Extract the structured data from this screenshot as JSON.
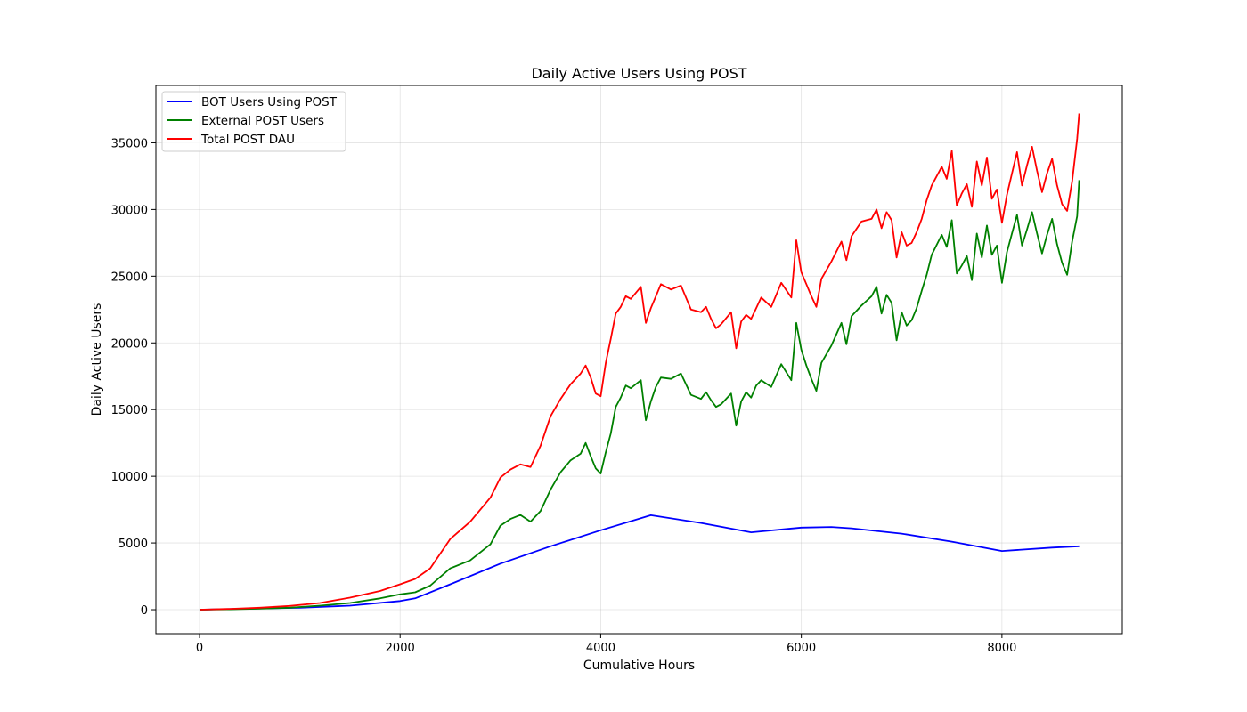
{
  "chart_data": {
    "type": "line",
    "title": "Daily Active Users Using POST",
    "xlabel": "Cumulative Hours",
    "ylabel": "Daily Active Users",
    "xlim": [
      -435,
      9200
    ],
    "ylim": [
      -1800,
      39300
    ],
    "xticks": [
      0,
      2000,
      4000,
      6000,
      8000
    ],
    "yticks": [
      0,
      5000,
      10000,
      15000,
      20000,
      25000,
      30000,
      35000
    ],
    "grid": true,
    "legend_position": "upper-left",
    "series": [
      {
        "name": "BOT Users Using POST",
        "color": "#0000ff",
        "x": [
          0,
          500,
          1000,
          1500,
          2000,
          2150,
          2500,
          3000,
          3500,
          4000,
          4500,
          5000,
          5500,
          6000,
          6300,
          6500,
          7000,
          7500,
          8000,
          8500,
          8770
        ],
        "y": [
          0,
          80,
          150,
          300,
          650,
          850,
          1900,
          3450,
          4750,
          5950,
          7080,
          6500,
          5800,
          6150,
          6200,
          6100,
          5700,
          5100,
          4400,
          4650,
          4750
        ]
      },
      {
        "name": "External POST Users",
        "color": "#008000",
        "x": [
          0,
          300,
          600,
          900,
          1200,
          1500,
          1800,
          2000,
          2150,
          2300,
          2500,
          2700,
          2900,
          3000,
          3100,
          3200,
          3300,
          3400,
          3500,
          3600,
          3700,
          3800,
          3850,
          3900,
          3950,
          4000,
          4050,
          4100,
          4150,
          4200,
          4250,
          4300,
          4400,
          4450,
          4500,
          4550,
          4600,
          4700,
          4800,
          4900,
          5000,
          5050,
          5100,
          5150,
          5200,
          5300,
          5350,
          5400,
          5450,
          5500,
          5550,
          5600,
          5700,
          5800,
          5900,
          5950,
          6000,
          6050,
          6100,
          6150,
          6200,
          6300,
          6400,
          6450,
          6500,
          6600,
          6700,
          6750,
          6800,
          6850,
          6900,
          6950,
          7000,
          7050,
          7100,
          7150,
          7200,
          7250,
          7300,
          7400,
          7450,
          7500,
          7550,
          7600,
          7650,
          7700,
          7750,
          7800,
          7850,
          7900,
          7950,
          8000,
          8050,
          8100,
          8150,
          8200,
          8250,
          8300,
          8350,
          8400,
          8450,
          8500,
          8550,
          8600,
          8650,
          8700,
          8750,
          8770
        ],
        "y": [
          0,
          30,
          80,
          150,
          300,
          500,
          850,
          1150,
          1300,
          1800,
          3100,
          3700,
          4900,
          6300,
          6800,
          7100,
          6600,
          7400,
          9000,
          10300,
          11200,
          11700,
          12500,
          11500,
          10600,
          10200,
          11800,
          13200,
          15200,
          15900,
          16800,
          16600,
          17200,
          14200,
          15600,
          16700,
          17400,
          17300,
          17700,
          16100,
          15800,
          16300,
          15700,
          15200,
          15400,
          16200,
          13800,
          15600,
          16300,
          15900,
          16800,
          17200,
          16700,
          18400,
          17200,
          21500,
          19500,
          18300,
          17300,
          16400,
          18500,
          19800,
          21500,
          19900,
          22000,
          22800,
          23500,
          24200,
          22200,
          23600,
          23000,
          20200,
          22300,
          21300,
          21700,
          22600,
          23900,
          25100,
          26600,
          28100,
          27200,
          29200,
          25200,
          25800,
          26500,
          24700,
          28200,
          26400,
          28800,
          26600,
          27300,
          24500,
          26800,
          28200,
          29600,
          27300,
          28500,
          29800,
          28200,
          26700,
          28100,
          29300,
          27400,
          26000,
          25100,
          27600,
          29500,
          32200
        ]
      },
      {
        "name": "Total POST DAU",
        "color": "#ff0000",
        "x": [
          0,
          300,
          600,
          900,
          1200,
          1500,
          1800,
          2000,
          2150,
          2300,
          2500,
          2700,
          2900,
          3000,
          3100,
          3200,
          3300,
          3400,
          3500,
          3600,
          3700,
          3800,
          3850,
          3900,
          3950,
          4000,
          4050,
          4100,
          4150,
          4200,
          4250,
          4300,
          4400,
          4450,
          4500,
          4550,
          4600,
          4700,
          4800,
          4900,
          5000,
          5050,
          5100,
          5150,
          5200,
          5300,
          5350,
          5400,
          5450,
          5500,
          5550,
          5600,
          5700,
          5800,
          5900,
          5950,
          6000,
          6050,
          6100,
          6150,
          6200,
          6300,
          6400,
          6450,
          6500,
          6600,
          6700,
          6750,
          6800,
          6850,
          6900,
          6950,
          7000,
          7050,
          7100,
          7150,
          7200,
          7250,
          7300,
          7400,
          7450,
          7500,
          7550,
          7600,
          7650,
          7700,
          7750,
          7800,
          7850,
          7900,
          7950,
          8000,
          8050,
          8100,
          8150,
          8200,
          8250,
          8300,
          8350,
          8400,
          8450,
          8500,
          8550,
          8600,
          8650,
          8700,
          8750,
          8770
        ],
        "y": [
          0,
          60,
          150,
          280,
          500,
          900,
          1400,
          1900,
          2300,
          3100,
          5300,
          6600,
          8400,
          9900,
          10500,
          10900,
          10700,
          12300,
          14500,
          15800,
          16900,
          17700,
          18300,
          17400,
          16200,
          16000,
          18500,
          20300,
          22200,
          22700,
          23500,
          23300,
          24200,
          21500,
          22600,
          23500,
          24400,
          24000,
          24300,
          22500,
          22300,
          22700,
          21800,
          21100,
          21400,
          22300,
          19600,
          21600,
          22100,
          21800,
          22600,
          23400,
          22700,
          24500,
          23400,
          27700,
          25300,
          24400,
          23500,
          22700,
          24800,
          26100,
          27600,
          26200,
          28000,
          29100,
          29300,
          30000,
          28600,
          29800,
          29200,
          26400,
          28300,
          27300,
          27500,
          28300,
          29300,
          30700,
          31800,
          33200,
          32300,
          34400,
          30300,
          31200,
          31900,
          30200,
          33600,
          31800,
          33900,
          30800,
          31500,
          29000,
          31100,
          32700,
          34300,
          31800,
          33300,
          34700,
          32900,
          31300,
          32700,
          33800,
          31800,
          30400,
          29900,
          32100,
          35300,
          37200
        ]
      }
    ]
  }
}
